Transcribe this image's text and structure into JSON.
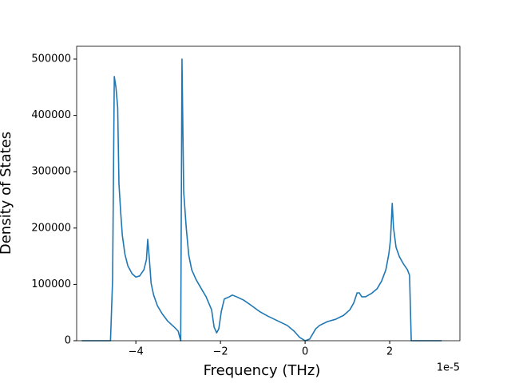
{
  "chart_data": {
    "type": "line",
    "xlabel": "Frequency (THz)",
    "ylabel": "Density of States",
    "x_offset_label": "1e-5",
    "x": [
      -5.28,
      -4.6,
      -4.55,
      -4.51,
      -4.47,
      -4.43,
      -4.4,
      -4.36,
      -4.32,
      -4.26,
      -4.19,
      -4.09,
      -4.0,
      -3.91,
      -3.81,
      -3.75,
      -3.72,
      -3.68,
      -3.64,
      -3.58,
      -3.49,
      -3.38,
      -3.25,
      -3.09,
      -3.0,
      -2.94,
      -2.91,
      -2.87,
      -2.81,
      -2.75,
      -2.68,
      -2.58,
      -2.45,
      -2.34,
      -2.21,
      -2.15,
      -2.09,
      -2.04,
      -1.98,
      -1.91,
      -1.79,
      -1.72,
      -1.62,
      -1.45,
      -1.26,
      -1.08,
      -0.89,
      -0.64,
      -0.42,
      -0.26,
      -0.13,
      0,
      0.11,
      0.25,
      0.34,
      0.53,
      0.72,
      0.91,
      1.06,
      1.15,
      1.23,
      1.28,
      1.34,
      1.43,
      1.57,
      1.7,
      1.81,
      1.91,
      1.98,
      2.02,
      2.06,
      2.09,
      2.15,
      2.23,
      2.32,
      2.42,
      2.47,
      2.51,
      3.23
    ],
    "series": [
      {
        "name": "DOS",
        "color": "#1f77b4",
        "values": [
          0,
          0,
          109000,
          469000,
          449000,
          414000,
          279000,
          229000,
          187000,
          154000,
          133000,
          119000,
          113000,
          115000,
          126000,
          144000,
          180000,
          144000,
          102000,
          81000,
          62000,
          48000,
          35000,
          24000,
          17000,
          0,
          500000,
          265000,
          201000,
          152000,
          126000,
          109000,
          92000,
          78000,
          55000,
          24000,
          14000,
          21000,
          52000,
          74000,
          78000,
          81000,
          78000,
          72000,
          62000,
          52000,
          44000,
          35000,
          27000,
          17000,
          6000,
          0,
          3000,
          21000,
          27000,
          34000,
          38000,
          45000,
          55000,
          67000,
          85000,
          85000,
          78000,
          78000,
          84000,
          92000,
          106000,
          126000,
          154000,
          180000,
          244000,
          201000,
          166000,
          149000,
          137000,
          126000,
          116000,
          0,
          0
        ]
      }
    ],
    "xlim": [
      -5.4,
      3.66
    ],
    "ylim": [
      0,
      522700
    ],
    "xticks": [
      {
        "value": -4,
        "label": "−4"
      },
      {
        "value": -2,
        "label": "−2"
      },
      0,
      2
    ],
    "yticks": [
      0,
      100000,
      200000,
      300000,
      400000,
      500000
    ]
  }
}
